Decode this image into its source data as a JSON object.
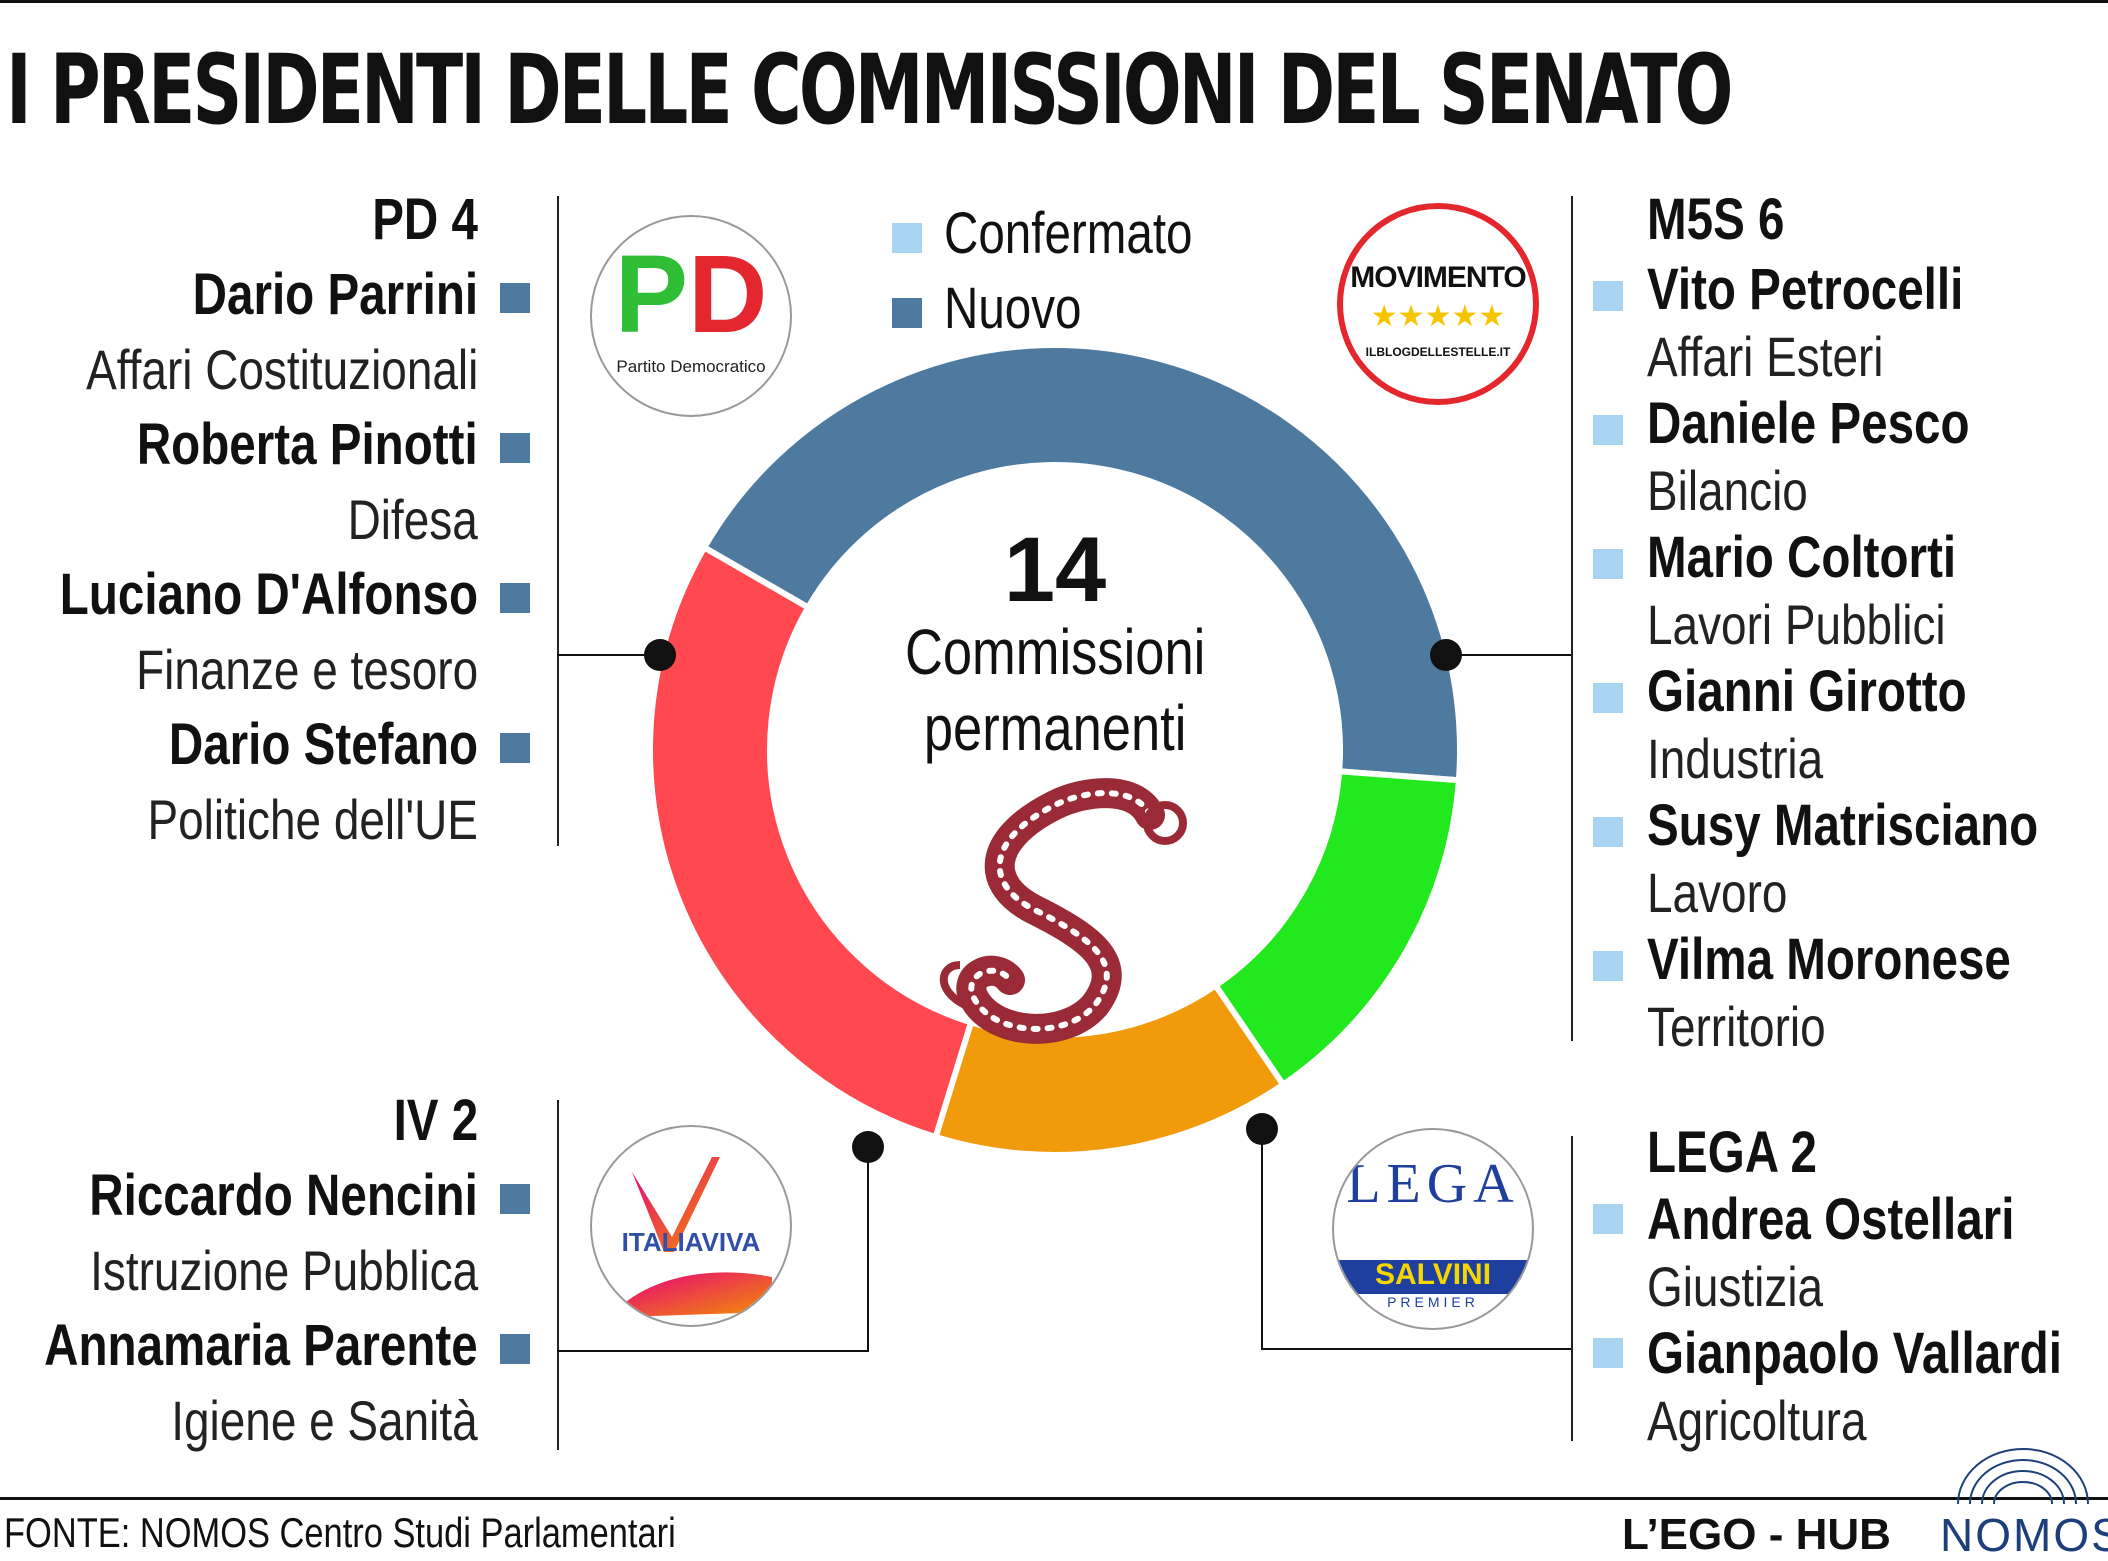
{
  "title": "I PRESIDENTI DELLE COMMISSIONI DEL SENATO",
  "legend": {
    "confirmed_label": "Confermato",
    "new_label": "Nuovo",
    "confirmed_color": "#a8d4f2",
    "new_color": "#4f7aa0"
  },
  "center": {
    "number": "14",
    "line1": "Commissioni",
    "line2": "permanenti"
  },
  "chart_data": {
    "type": "pie",
    "donut": true,
    "categories": [
      "M5S",
      "LEGA",
      "IV",
      "PD"
    ],
    "values": [
      6,
      2,
      2,
      4
    ],
    "colors": [
      "#4f7aa0",
      "#22e81e",
      "#f09a0c",
      "#ff4850"
    ],
    "total": 14
  },
  "parties": {
    "pd": {
      "heading": "PD 4",
      "members": [
        {
          "name": "Dario Parrini",
          "commission": "Affari Costituzionali",
          "status": "new"
        },
        {
          "name": "Roberta Pinotti",
          "commission": "Difesa",
          "status": "new"
        },
        {
          "name": "Luciano D'Alfonso",
          "commission": "Finanze e tesoro",
          "status": "new"
        },
        {
          "name": "Dario Stefano",
          "commission": "Politiche dell'UE",
          "status": "new"
        }
      ]
    },
    "iv": {
      "heading": "IV 2",
      "members": [
        {
          "name": "Riccardo Nencini",
          "commission": "Istruzione Pubblica",
          "status": "new"
        },
        {
          "name": "Annamaria Parente",
          "commission": "Igiene e Sanità",
          "status": "new"
        }
      ]
    },
    "m5s": {
      "heading": "M5S 6",
      "members": [
        {
          "name": "Vito Petrocelli",
          "commission": "Affari Esteri",
          "status": "confirmed"
        },
        {
          "name": "Daniele Pesco",
          "commission": "Bilancio",
          "status": "confirmed"
        },
        {
          "name": "Mario Coltorti",
          "commission": "Lavori Pubblici",
          "status": "confirmed"
        },
        {
          "name": "Gianni Girotto",
          "commission": "Industria",
          "status": "confirmed"
        },
        {
          "name": "Susy Matrisciano",
          "commission": "Lavoro",
          "status": "confirmed"
        },
        {
          "name": "Vilma Moronese",
          "commission": "Territorio",
          "status": "confirmed"
        }
      ]
    },
    "lega": {
      "heading": "LEGA 2",
      "members": [
        {
          "name": "Andrea Ostellari",
          "commission": "Giustizia",
          "status": "confirmed"
        },
        {
          "name": "Gianpaolo Vallardi",
          "commission": "Agricoltura",
          "status": "confirmed"
        }
      ]
    }
  },
  "logos": {
    "pd": {
      "mark": "PD",
      "caption": "Partito Democratico"
    },
    "m5s": {
      "mark": "MOVIMENTO",
      "stars": "★★★★★",
      "caption": "ILBLOGDELLESTELLE.IT"
    },
    "iv": {
      "mark": "ITALIAVIVA"
    },
    "lega": {
      "mark": "LEGA",
      "sub": "SALVINI",
      "sub2": "PREMIER"
    }
  },
  "footer": {
    "source": "FONTE: NOMOS Centro Studi Parlamentari",
    "brand": "L’EGO - HUB",
    "nomos": "NOMOS"
  }
}
